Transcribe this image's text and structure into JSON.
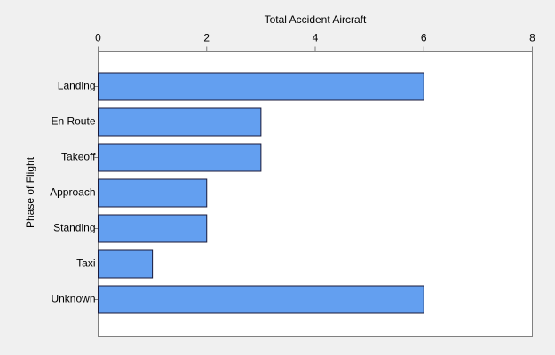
{
  "chart_data": {
    "type": "hbar",
    "x_label": "Total Accident Aircraft",
    "y_label": "Phase of Flight",
    "categories": [
      "Landing",
      "En Route",
      "Takeoff",
      "Approach",
      "Standing",
      "Taxi",
      "Unknown"
    ],
    "values": [
      6,
      3,
      3,
      2,
      2,
      1,
      6
    ],
    "color": "#639ff0",
    "xlim": [
      0,
      8
    ],
    "xticks": [
      0,
      2,
      4,
      6,
      8
    ]
  }
}
